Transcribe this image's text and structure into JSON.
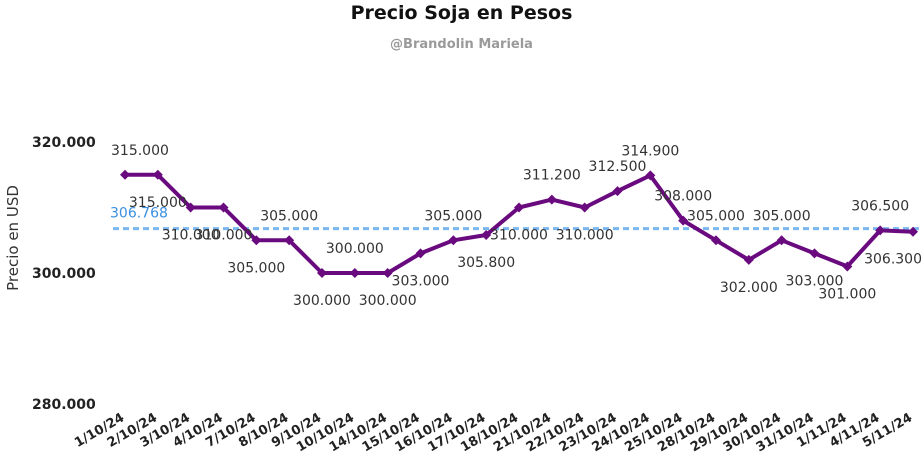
{
  "chart_data": {
    "type": "line",
    "title": "Precio Soja en Pesos",
    "subtitle": "@Brandolin Mariela",
    "ylabel": "Precio en USD",
    "xlabel": "",
    "ylim": [
      280000,
      320000
    ],
    "yticks": [
      {
        "value": 320000,
        "label": "320.000"
      },
      {
        "value": 300000,
        "label": "300.000"
      },
      {
        "value": 280000,
        "label": "280.000"
      }
    ],
    "categories": [
      "1/10/24",
      "2/10/24",
      "3/10/24",
      "4/10/24",
      "7/10/24",
      "8/10/24",
      "9/10/24",
      "10/10/24",
      "14/10/24",
      "15/10/24",
      "16/10/24",
      "17/10/24",
      "18/10/24",
      "21/10/24",
      "22/10/24",
      "23/10/24",
      "24/10/24",
      "25/10/24",
      "28/10/24",
      "29/10/24",
      "30/10/24",
      "31/10/24",
      "1/11/24",
      "4/11/24",
      "5/11/24"
    ],
    "series": [
      {
        "color": "#6a0a7f",
        "values": [
          315000,
          315000,
          310000,
          310000,
          305000,
          305000,
          300000,
          300000,
          300000,
          303000,
          305000,
          305800,
          310000,
          311200,
          310000,
          312500,
          314900,
          308000,
          305000,
          302000,
          305000,
          303000,
          301000,
          306500,
          306300
        ],
        "labels": [
          "315.000",
          "315.000",
          "310.000",
          "310.000",
          "305.000",
          "305.000",
          "300.000",
          "300.000",
          "300.000",
          "303.000",
          "305.000",
          "305.800",
          "310.000",
          "311.200",
          "310.000",
          "312.500",
          "314.900",
          "308.000",
          "305.000",
          "302.000",
          "305.000",
          "303.000",
          "301.000",
          "306.500",
          "306.300"
        ]
      }
    ],
    "average_line": {
      "value": 306768,
      "label": "306.768",
      "color": "#7ab6f0"
    },
    "grid": false,
    "legend": "none"
  }
}
